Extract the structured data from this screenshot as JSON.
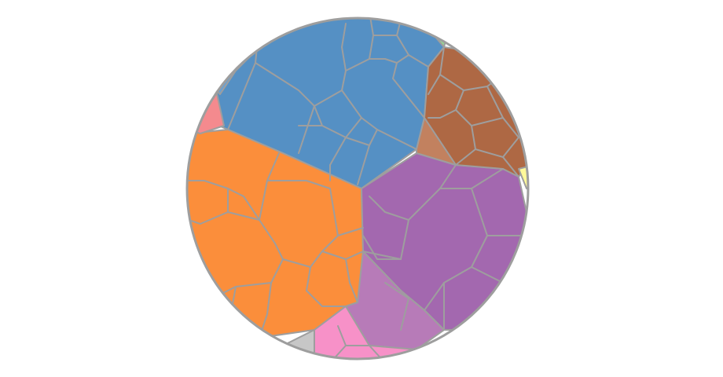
{
  "diagram": {
    "type": "voronoi-treemap",
    "boundary": "circle",
    "stroke_color": "#9e9e9e",
    "background": "#ffffff",
    "groups": [
      {
        "id": "blue",
        "color": "#5590c4",
        "highlight": "#6ca0d0"
      },
      {
        "id": "orange",
        "color": "#fb8e3b"
      },
      {
        "id": "purple",
        "color": "#a368af"
      },
      {
        "id": "orchid",
        "color": "#b77bb8"
      },
      {
        "id": "pink",
        "color": "#f791c8"
      },
      {
        "id": "brown",
        "color": "#ae6844"
      },
      {
        "id": "tan",
        "color": "#c2815f"
      },
      {
        "id": "green",
        "color": "#98d393"
      },
      {
        "id": "yellow",
        "color": "#fff99a"
      },
      {
        "id": "red",
        "color": "#f48a8e"
      },
      {
        "id": "grey",
        "color": "#c7c7c7"
      }
    ]
  }
}
